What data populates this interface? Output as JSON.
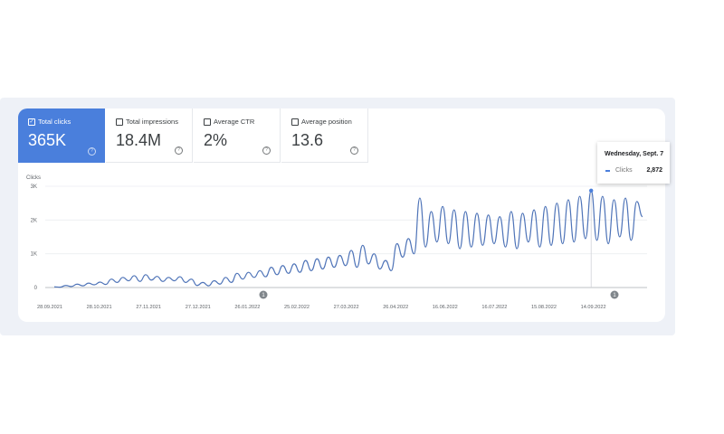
{
  "tabs": [
    {
      "label": "Total clicks",
      "value": "365K",
      "checked": true
    },
    {
      "label": "Total impressions",
      "value": "18.4M",
      "checked": false
    },
    {
      "label": "Average CTR",
      "value": "2%",
      "checked": false
    },
    {
      "label": "Average position",
      "value": "13.6",
      "checked": false
    }
  ],
  "colors": {
    "accent": "#4a7fdc",
    "line": "#4f74b8",
    "panel": "#eef1f7"
  },
  "tooltip": {
    "title": "Wednesday, Sept. 7",
    "series": "Clicks",
    "value": "2,872"
  },
  "chart_data": {
    "type": "line",
    "ylabel": "Clicks",
    "ylim": [
      0,
      3000
    ],
    "y_ticks": [
      "0",
      "1K",
      "2K",
      "3K"
    ],
    "x_ticks": [
      "28.09.2021",
      "28.10.2021",
      "27.11.2021",
      "27.12.2021",
      "26.01.2022",
      "25.02.2022",
      "27.03.2022",
      "26.04.2022",
      "16.06.2022",
      "16.07.2022",
      "15.08.2022",
      "14.09.2022"
    ],
    "grid": true,
    "annotations": [
      "1",
      "1"
    ],
    "series": [
      {
        "values": [
          20,
          10,
          60,
          30,
          100,
          50,
          130,
          80,
          160,
          90,
          250,
          150,
          300,
          200,
          350,
          180,
          380,
          220,
          330,
          180,
          300,
          200,
          320,
          150,
          250,
          60,
          150,
          50,
          200,
          100,
          300,
          150,
          420,
          250,
          450,
          300,
          500,
          320,
          600,
          380,
          650,
          420,
          700,
          450,
          800,
          500,
          850,
          550,
          900,
          600,
          950,
          650,
          1100,
          600,
          1250,
          700,
          1000,
          550,
          800,
          500,
          1300,
          900,
          1450,
          1000,
          2650,
          1200,
          2250,
          1350,
          2400,
          1300,
          2300,
          1150,
          2250,
          1200,
          2200,
          1250,
          2150,
          1300,
          2100,
          1200,
          2250,
          1150,
          2200,
          1350,
          2300,
          1200,
          2400,
          1250,
          2500,
          1300,
          2600,
          1350,
          2700,
          1450,
          2872,
          1400,
          2700,
          1300,
          2600,
          1500,
          2650,
          1400,
          2550,
          2100
        ]
      }
    ],
    "highlight": {
      "label": "Wednesday, Sept. 7",
      "value": 2872
    }
  }
}
